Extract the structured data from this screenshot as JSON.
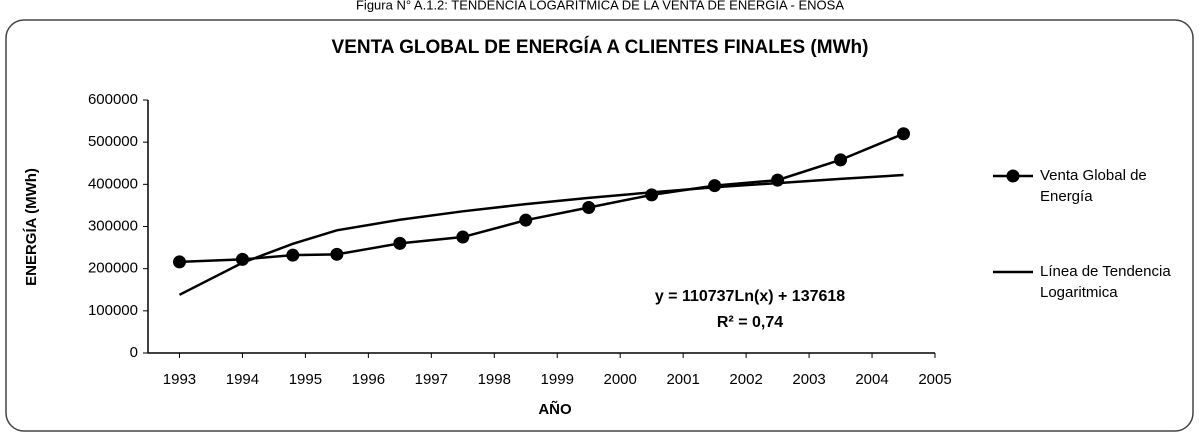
{
  "chart_data": {
    "type": "line",
    "caption": "Figura N° A.1.2: TENDENCIA LOGARÍTMICA DE LA VENTA DE ENERGÍA - ENOSA",
    "title": "VENTA GLOBAL DE ENERGÍA A CLIENTES FINALES (MWh)",
    "x_label": "AÑO",
    "y_label": "ENERGÍA (MWh)",
    "x": [
      1993,
      1994,
      1994.8,
      1995.5,
      1996.5,
      1997.5,
      1998.5,
      1999.5,
      2000.5,
      2001.5,
      2002.5,
      2003.5,
      2004.5
    ],
    "series": [
      {
        "name": "Venta Global de Energía",
        "color": "#000000",
        "marker": true,
        "values": [
          216000,
          222000,
          232000,
          234000,
          260000,
          275000,
          315000,
          345000,
          375000,
          397000,
          410000,
          458000,
          520000
        ]
      },
      {
        "name": "Línea de Tendencia Logaritmica",
        "color": "#000000",
        "marker": false,
        "values": [
          138000,
          214000,
          259000,
          291000,
          316000,
          336000,
          353000,
          368000,
          381000,
          393000,
          403000,
          413000,
          422000
        ]
      }
    ],
    "annotations": [
      "y = 110737Ln(x) + 137618",
      "R² = 0,74"
    ],
    "xlim": [
      1992.5,
      2005
    ],
    "xticks": [
      1993,
      1994,
      1995,
      1996,
      1997,
      1998,
      1999,
      2000,
      2001,
      2002,
      2003,
      2004,
      2005
    ],
    "ylim": [
      0,
      600000
    ],
    "yticks": [
      0,
      100000,
      200000,
      300000,
      400000,
      500000,
      600000
    ]
  }
}
